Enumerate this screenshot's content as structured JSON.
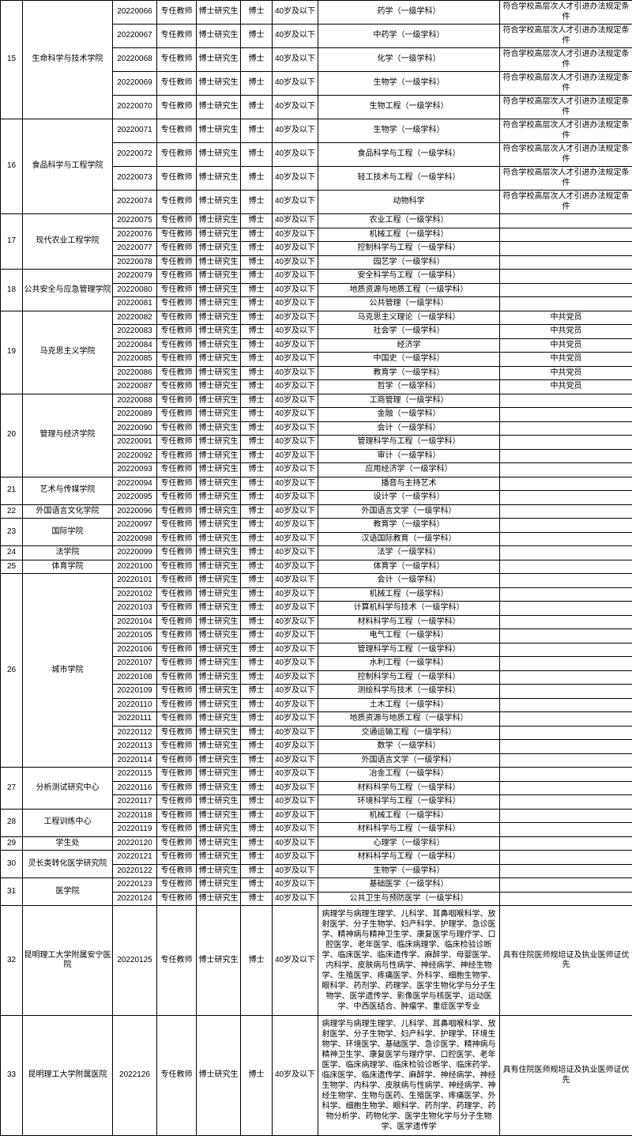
{
  "common": {
    "pos": "专任教师",
    "edu": "博士研究生",
    "deg": "博士",
    "age": "40岁及以下",
    "remark_talent": "符合学校高层次人才引进办法规定条件",
    "remark_cpc": "中共党员",
    "remark_doctor": "具有住院医师规培证及执业医师证优先"
  },
  "groups": [
    {
      "idx": "15",
      "dept": "生命科学与技术学院",
      "rows": [
        {
          "code": "20220066",
          "major": "药学（一级学科）",
          "r": "t"
        },
        {
          "code": "20220067",
          "major": "中药学（一级学科）",
          "r": "t"
        },
        {
          "code": "20220068",
          "major": "化学（一级学科）",
          "r": "t"
        },
        {
          "code": "20220069",
          "major": "生物学（一级学科）",
          "r": "t"
        },
        {
          "code": "20220070",
          "major": "生物工程（一级学科）",
          "r": "t"
        }
      ]
    },
    {
      "idx": "16",
      "dept": "食品科学与工程学院",
      "rows": [
        {
          "code": "20220071",
          "major": "生物学（一级学科）",
          "r": "t"
        },
        {
          "code": "20220072",
          "major": "食品科学与工程（一级学科）",
          "r": "t"
        },
        {
          "code": "20220073",
          "major": "轻工技术与工程（一级学科）",
          "r": "t"
        },
        {
          "code": "20220074",
          "major": "动物科学",
          "r": "t"
        }
      ]
    },
    {
      "idx": "17",
      "dept": "现代农业工程学院",
      "rows": [
        {
          "code": "20220075",
          "major": "农业工程（一级学科）",
          "r": ""
        },
        {
          "code": "20220076",
          "major": "机械工程（一级学科）",
          "r": ""
        },
        {
          "code": "20220077",
          "major": "控制科学与工程（一级学科）",
          "r": ""
        },
        {
          "code": "20220078",
          "major": "园艺学（一级学科）",
          "r": ""
        }
      ]
    },
    {
      "idx": "18",
      "dept": "公共安全与应急管理学院",
      "rows": [
        {
          "code": "20220079",
          "major": "安全科学与工程（一级学科）",
          "r": ""
        },
        {
          "code": "20220080",
          "major": "地质资源与地质工程（一级学科）",
          "r": ""
        },
        {
          "code": "20220081",
          "major": "公共管理（一级学科）",
          "r": ""
        }
      ]
    },
    {
      "idx": "19",
      "dept": "马克思主义学院",
      "rows": [
        {
          "code": "20220082",
          "major": "马克思主义理论（一级学科）",
          "r": "c"
        },
        {
          "code": "20220083",
          "major": "社会学（一级学科）",
          "r": "c"
        },
        {
          "code": "20220084",
          "major": "经济学",
          "r": "c"
        },
        {
          "code": "20220085",
          "major": "中国史（一级学科）",
          "r": "c"
        },
        {
          "code": "20220086",
          "major": "教育学（一级学科）",
          "r": "c"
        },
        {
          "code": "20220087",
          "major": "哲学（一级学科）",
          "r": "c"
        }
      ]
    },
    {
      "idx": "20",
      "dept": "管理与经济学院",
      "rows": [
        {
          "code": "20220088",
          "major": "工商管理（一级学科）",
          "r": ""
        },
        {
          "code": "20220089",
          "major": "金融（一级学科）",
          "r": ""
        },
        {
          "code": "20220090",
          "major": "会计（一级学科）",
          "r": ""
        },
        {
          "code": "20220091",
          "major": "管理科学与工程（一级学科）",
          "r": ""
        },
        {
          "code": "20220092",
          "major": "审计（一级学科）",
          "r": ""
        },
        {
          "code": "20220093",
          "major": "应用经济学（一级学科）",
          "r": ""
        }
      ]
    },
    {
      "idx": "21",
      "dept": "艺术与传媒学院",
      "rows": [
        {
          "code": "20220094",
          "major": "播音与主持艺术",
          "r": ""
        },
        {
          "code": "20220095",
          "major": "设计学（一级学科）",
          "r": ""
        }
      ]
    },
    {
      "idx": "22",
      "dept": "外国语言文化学院",
      "rows": [
        {
          "code": "20220096",
          "major": "外国语言文学（一级学科）",
          "r": ""
        }
      ]
    },
    {
      "idx": "23",
      "dept": "国际学院",
      "rows": [
        {
          "code": "20220097",
          "major": "教育学（一级学科）",
          "r": ""
        },
        {
          "code": "20220098",
          "major": "汉语国际教育（一级学科）",
          "r": ""
        }
      ]
    },
    {
      "idx": "24",
      "dept": "法学院",
      "rows": [
        {
          "code": "20220099",
          "major": "法学（一级学科）",
          "r": ""
        }
      ]
    },
    {
      "idx": "25",
      "dept": "体育学院",
      "rows": [
        {
          "code": "20220100",
          "major": "体育学（一级学科）",
          "r": ""
        }
      ]
    },
    {
      "idx": "26",
      "dept": "城市学院",
      "rows": [
        {
          "code": "20220101",
          "major": "会计（一级学科）",
          "r": ""
        },
        {
          "code": "20220102",
          "major": "机械工程（一级学科）",
          "r": ""
        },
        {
          "code": "20220103",
          "major": "计算机科学与技术（一级学科）",
          "r": ""
        },
        {
          "code": "20220104",
          "major": "材料科学与工程（一级学科）",
          "r": ""
        },
        {
          "code": "20220105",
          "major": "电气工程（一级学科）",
          "r": ""
        },
        {
          "code": "20220106",
          "major": "管理科学与工程（一级学科）",
          "r": ""
        },
        {
          "code": "20220107",
          "major": "水利工程（一级学科）",
          "r": ""
        },
        {
          "code": "20220108",
          "major": "控制科学与工程（一级学科）",
          "r": ""
        },
        {
          "code": "20220109",
          "major": "测绘科学与技术（一级学科）",
          "r": ""
        },
        {
          "code": "20220110",
          "major": "土木工程（一级学科）",
          "r": ""
        },
        {
          "code": "20220111",
          "major": "地质资源与地质工程（一级学科）",
          "r": ""
        },
        {
          "code": "20220112",
          "major": "交通运输工程（一级学科）",
          "r": ""
        },
        {
          "code": "20220113",
          "major": "数学（一级学科）",
          "r": ""
        },
        {
          "code": "20220114",
          "major": "外国语言文学（一级学科）",
          "r": ""
        }
      ]
    },
    {
      "idx": "27",
      "dept": "分析测试研究中心",
      "rows": [
        {
          "code": "20220115",
          "major": "冶金工程（一级学科）",
          "r": ""
        },
        {
          "code": "20220116",
          "major": "材料科学与工程（一级学科）",
          "r": ""
        },
        {
          "code": "20220117",
          "major": "环境科学与工程（一级学科）",
          "r": ""
        }
      ]
    },
    {
      "idx": "28",
      "dept": "工程训练中心",
      "rows": [
        {
          "code": "20220118",
          "major": "机械工程（一级学科）",
          "r": ""
        },
        {
          "code": "20220119",
          "major": "材料科学与工程（一级学科）",
          "r": ""
        }
      ]
    },
    {
      "idx": "29",
      "dept": "学生处",
      "rows": [
        {
          "code": "20220120",
          "major": "心理学（一级学科）",
          "r": ""
        }
      ]
    },
    {
      "idx": "30",
      "dept": "灵长类转化医学研究院",
      "rows": [
        {
          "code": "20220121",
          "major": "材料科学与工程（一级学科）",
          "r": ""
        },
        {
          "code": "20220122",
          "major": "生物学（一级学科）",
          "r": ""
        }
      ]
    },
    {
      "idx": "31",
      "dept": "医学院",
      "rows": [
        {
          "code": "20220123",
          "major": "基础医学（一级学科）",
          "r": ""
        },
        {
          "code": "20220124",
          "major": "公共卫生与预防医学（一级学科）",
          "r": ""
        }
      ]
    },
    {
      "idx": "32",
      "dept": "昆明理工大学附属安宁医院",
      "rows": [
        {
          "code": "20220125",
          "major": "病理学与病理生理学、儿科学、耳鼻咽喉科学、放射医学、分子生物学、妇产科学、护理学、急诊医学、精神病与精神卫生学、康复医学与理疗学、口腔医学、老年医学、临床病理学、临床检验诊断学、临床医学、临床遗传学、麻醉学、母婴医学、内科学、皮肤病与性病学、神经病学、神经生物学、生殖医学、疼痛医学、外科学、细胞生物学、眼科学、药剂学、药理学、医学生物化学与分子生物学、医学遗传学、影像医学与核医学、运动医学、中西医结合、肿瘤学、重症医学专业",
          "r": "d",
          "multi": true
        }
      ]
    },
    {
      "idx": "33",
      "dept": "昆明理工大学附属医院",
      "rows": [
        {
          "code": "2022126",
          "major": "病理学与病理生理学、儿科学、耳鼻咽喉科学、放射医学、分子生物学、妇产科学、护理学、环境生物学、环境医学、基础医学、急诊医学、精神病与精神卫生学、康复医学与理疗学、口腔医学、老年医学、临床病理学、临床检验诊断学、临床药学、临床医学、临床遗传学、麻醉学、神经病学、神经生物学、内科学、皮肤病与性病学、神经病学、神经生物学、生物与医药、生殖医学、疼痛医学、外科学、细胞生物学、眼科学、药剂学、药理学、药物分析学、药物化学、医学生物化学与分子生物学、医学遗传学",
          "r": "d",
          "multi": true
        }
      ]
    }
  ]
}
